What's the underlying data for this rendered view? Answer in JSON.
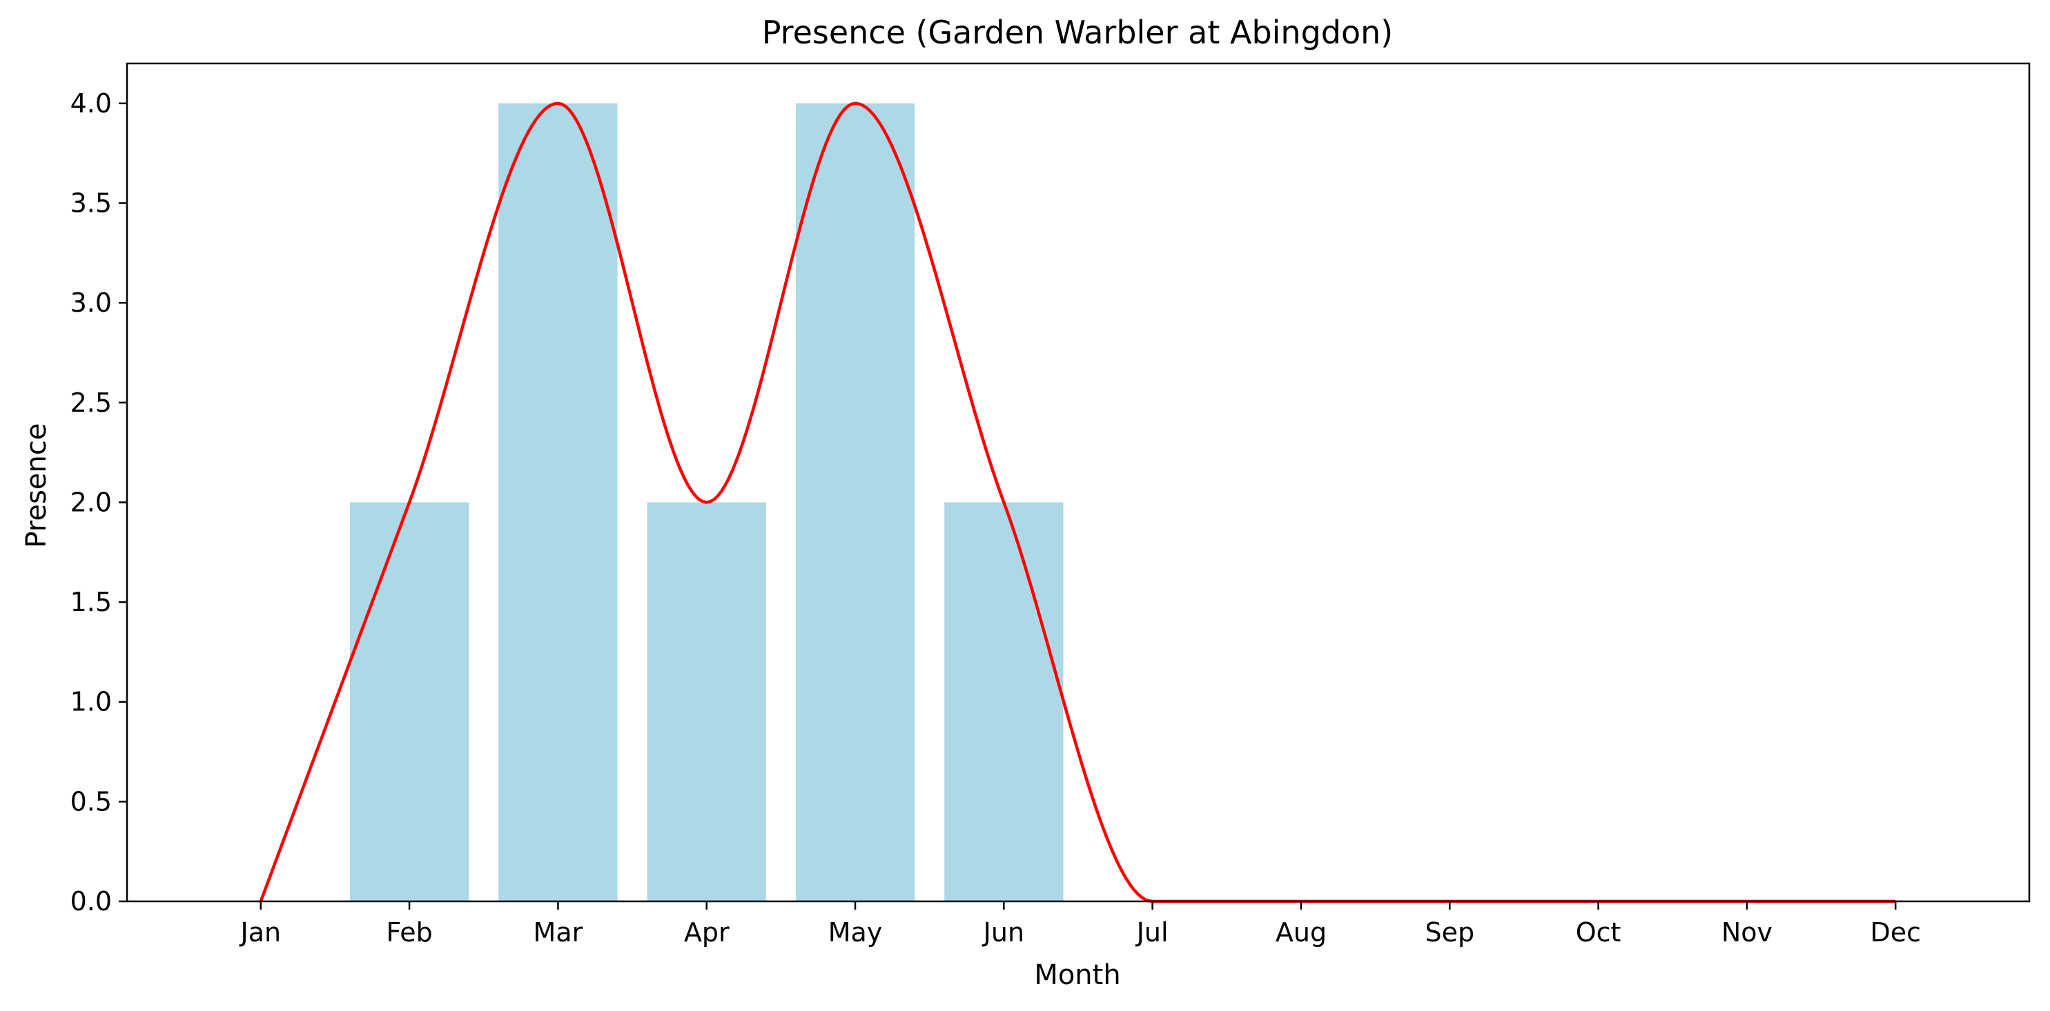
{
  "chart_data": {
    "type": "bar",
    "title": "Presence (Garden Warbler at Abingdon)",
    "xlabel": "Month",
    "ylabel": "Presence",
    "categories": [
      "Jan",
      "Feb",
      "Mar",
      "Apr",
      "May",
      "Jun",
      "Jul",
      "Aug",
      "Sep",
      "Oct",
      "Nov",
      "Dec"
    ],
    "values": [
      0,
      2,
      4,
      2,
      4,
      2,
      0,
      0,
      0,
      0,
      0,
      0
    ],
    "ylim": [
      0,
      4.2
    ],
    "yticks": [
      "0.0",
      "0.5",
      "1.0",
      "1.5",
      "2.0",
      "2.5",
      "3.0",
      "3.5",
      "4.0"
    ],
    "bar_color": "#add8e6",
    "line_color": "#ff0000",
    "overlay": "smoothed line through bar values",
    "grid": false,
    "legend": "none"
  }
}
